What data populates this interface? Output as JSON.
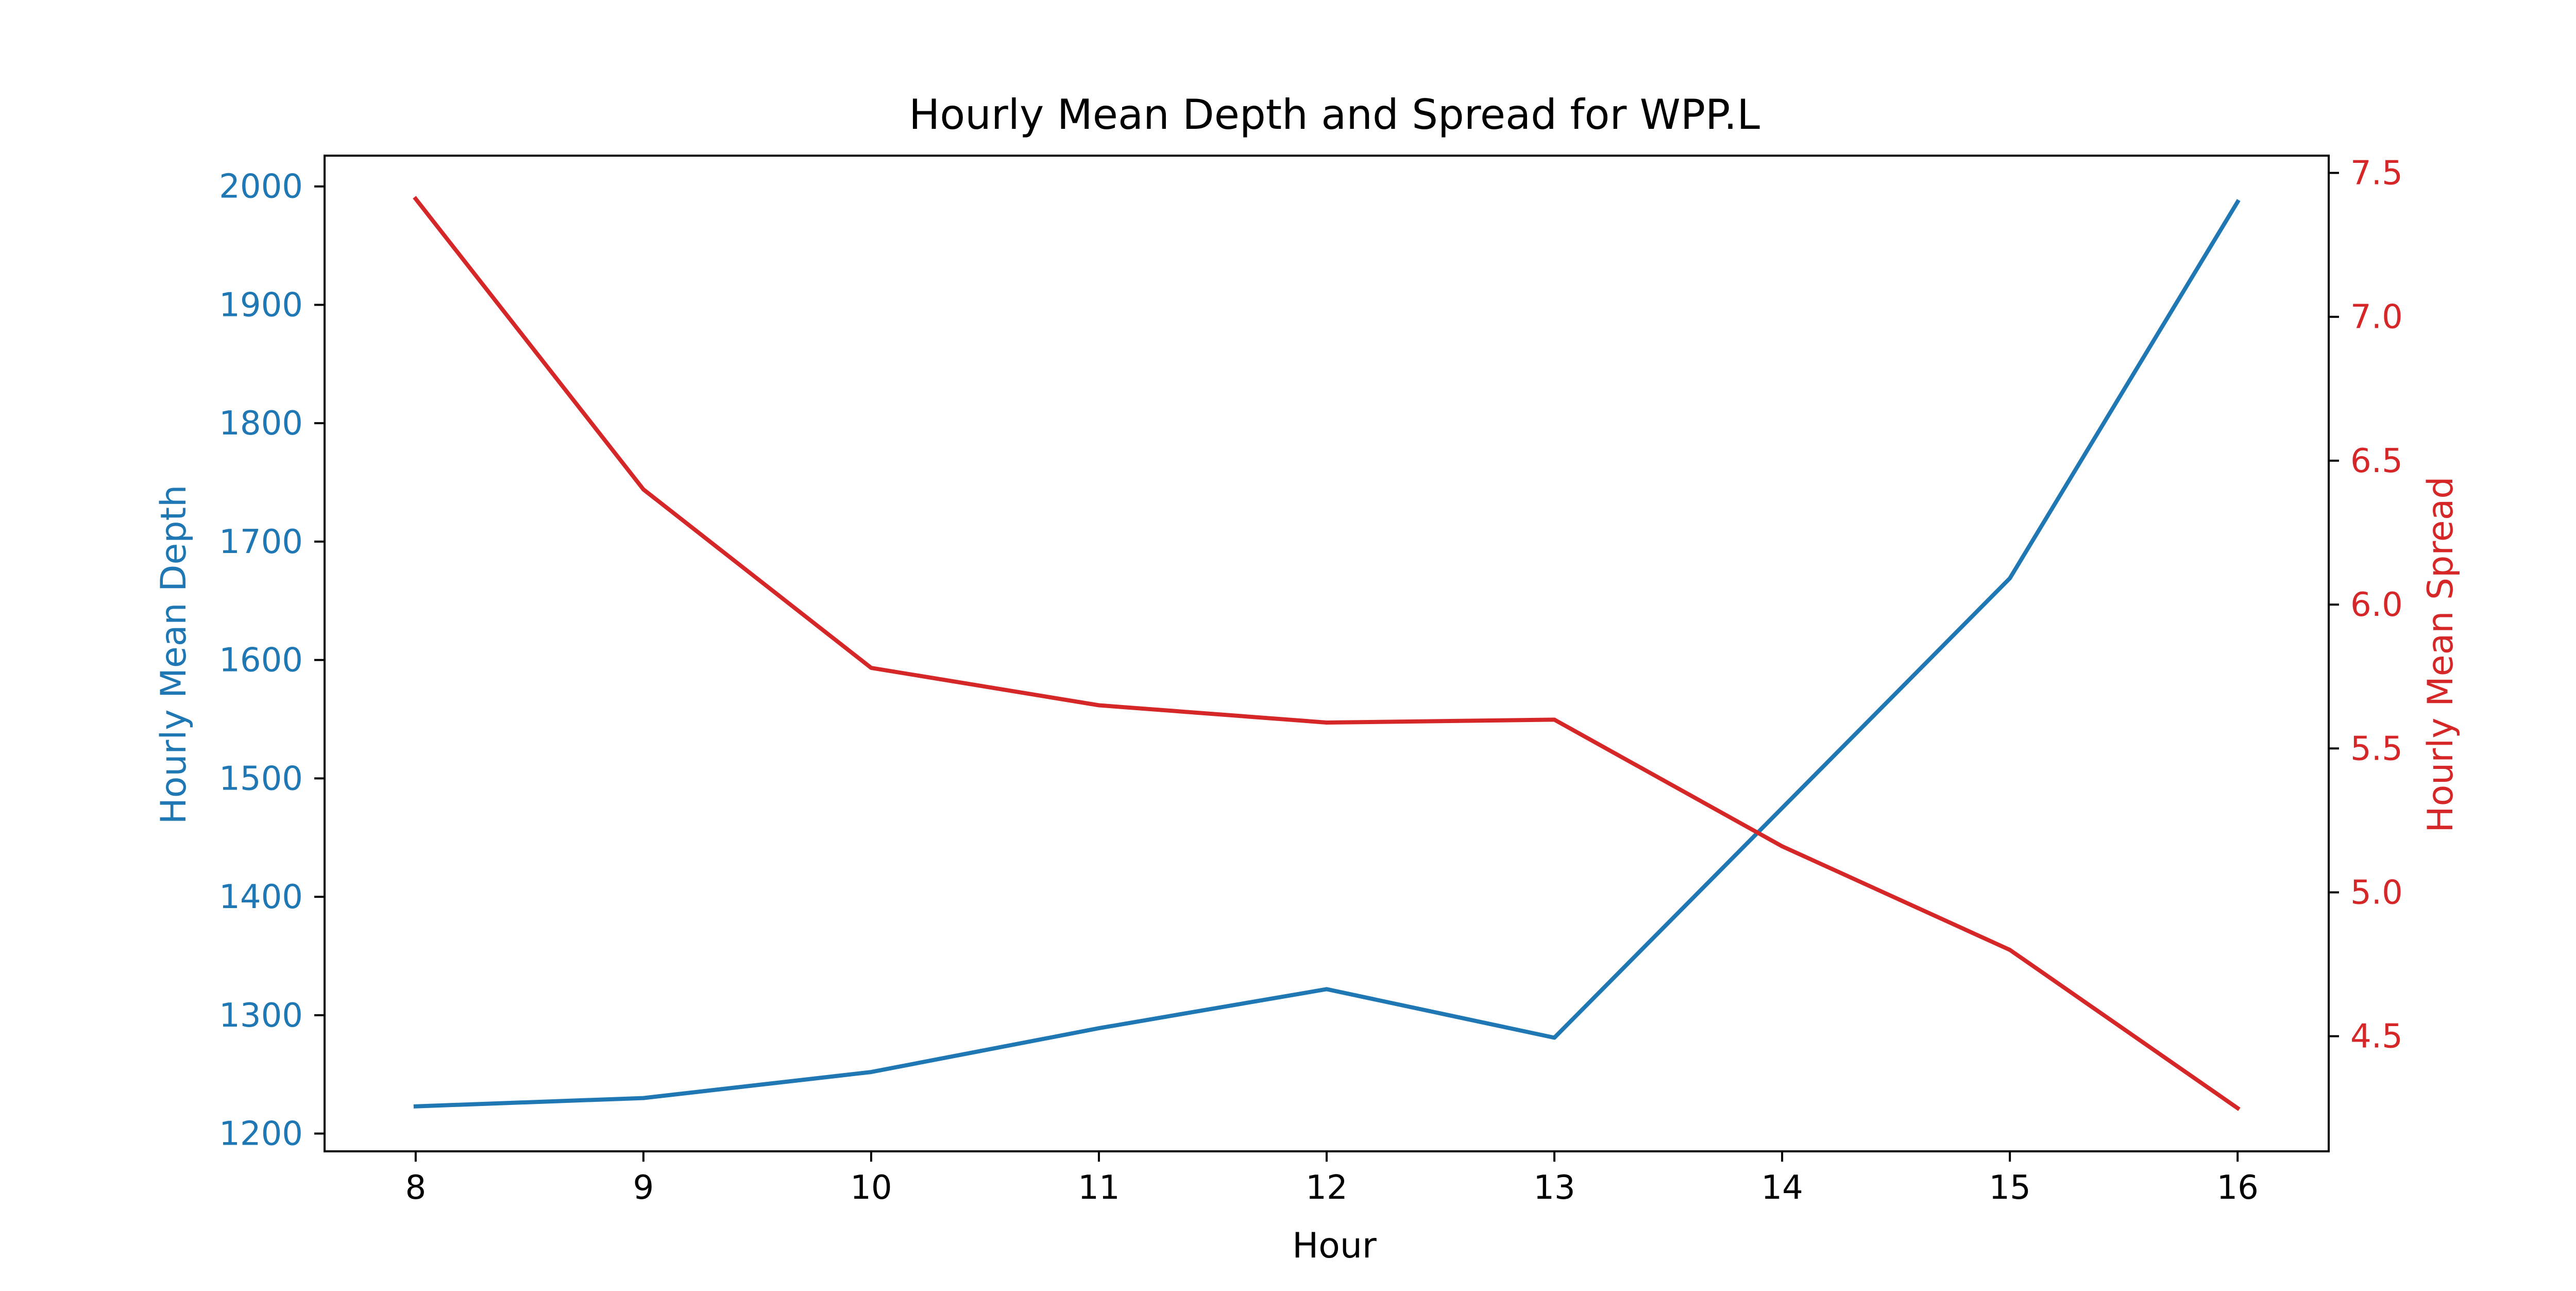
{
  "chart_data": {
    "type": "line",
    "title": "Hourly Mean Depth and Spread for WPP.L",
    "xlabel": "Hour",
    "x": [
      8,
      9,
      10,
      11,
      12,
      13,
      14,
      15,
      16
    ],
    "xlim": [
      7.6,
      16.4
    ],
    "y_left": {
      "label": "Hourly Mean Depth",
      "color": "#1f77b4",
      "lim": [
        1185,
        2026
      ],
      "ticks": [
        1200,
        1300,
        1400,
        1500,
        1600,
        1700,
        1800,
        1900,
        2000
      ]
    },
    "y_right": {
      "label": "Hourly Mean Spread",
      "color": "#d62728",
      "lim": [
        4.1,
        7.56
      ],
      "ticks": [
        "4.5",
        "5.0",
        "5.5",
        "6.0",
        "6.5",
        "7.0",
        "7.5"
      ]
    },
    "series": [
      {
        "axis": "left",
        "color": "#1f77b4",
        "values": [
          1223,
          1230,
          1252,
          1289,
          1322,
          1281,
          1475,
          1669,
          1987
        ]
      },
      {
        "axis": "right",
        "color": "#d62728",
        "values": [
          7.41,
          6.4,
          5.78,
          5.65,
          5.59,
          5.6,
          5.16,
          4.8,
          4.25
        ]
      }
    ],
    "grid": false
  }
}
